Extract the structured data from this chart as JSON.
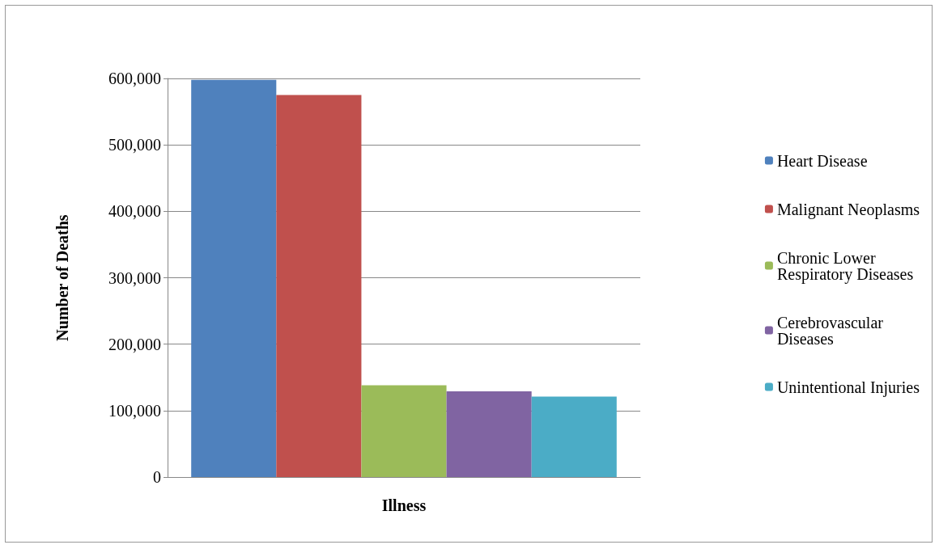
{
  "chart_data": {
    "type": "bar",
    "xlabel": "Illness",
    "ylabel": "Number of Deaths",
    "categories": [
      null
    ],
    "series": [
      {
        "name": "Heart Disease",
        "color": "#4f81bd",
        "values": [
          598000
        ]
      },
      {
        "name": "Malignant Neoplasms",
        "color": "#c0504d",
        "values": [
          575000
        ]
      },
      {
        "name": "Chronic Lower Respiratory Diseases",
        "color": "#9bbb59",
        "values": [
          138000
        ]
      },
      {
        "name": "Cerebrovascular Diseases",
        "color": "#8064a2",
        "values": [
          129000
        ]
      },
      {
        "name": "Unintentional Injuries",
        "color": "#4bacc6",
        "values": [
          121000
        ]
      }
    ],
    "ylim": [
      0,
      600000
    ],
    "yticks": [
      0,
      {
        "value": 100000,
        "label": "100,000"
      },
      {
        "value": 200000,
        "label": "200,000"
      },
      {
        "value": 300000,
        "label": "300,000"
      },
      {
        "value": 400000,
        "label": "400,000"
      },
      {
        "value": 500000,
        "label": "500,000"
      },
      {
        "value": 600000,
        "label": "600,000"
      }
    ],
    "grid": "y",
    "legend": "right"
  }
}
